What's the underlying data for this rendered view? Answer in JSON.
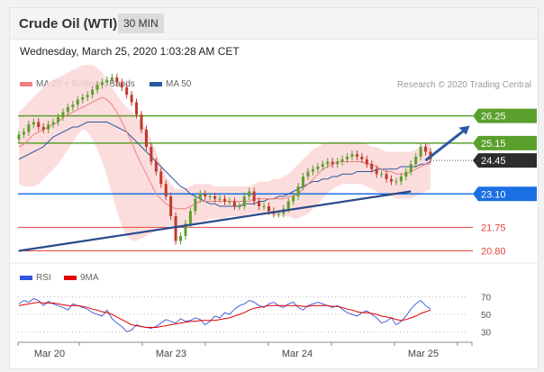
{
  "header": {
    "title": "Crude Oil (WTI)",
    "timeframe": "30 MIN"
  },
  "date_text": "Wednesday, March 25, 2020 1:03:28 AM CET",
  "legend": {
    "ma20": "MA 20 + Bollinger Bands",
    "ma50": "MA 50",
    "rsi": "RSI",
    "ma9": "9MA"
  },
  "credit": "Research © 2020 Trading Central",
  "colors": {
    "green": "#5aa02c",
    "blue": "#1a6fe3",
    "red": "#e2453c",
    "ma20": "#f08080",
    "ma50": "#2a5aa0",
    "band": "#fbd7d7",
    "arrow": "#2a5aa0"
  },
  "chart_data": [
    {
      "type": "line",
      "title": "",
      "x_tick_labels": [
        "Mar 20",
        "Mar 23",
        "Mar 24",
        "Mar 25"
      ],
      "ylim": [
        20.6,
        27.0
      ],
      "levels": [
        {
          "value": 26.25,
          "label": "26.25",
          "kind": "resistance"
        },
        {
          "value": 25.15,
          "label": "25.15",
          "kind": "resistance"
        },
        {
          "value": 24.45,
          "label": "24.45",
          "kind": "last-price"
        },
        {
          "value": 23.1,
          "label": "23.10",
          "kind": "pivot"
        },
        {
          "value": 21.75,
          "label": "21.75",
          "kind": "support"
        },
        {
          "value": 20.8,
          "label": "20.80",
          "kind": "support"
        }
      ],
      "close": [
        25.5,
        25.6,
        25.9,
        26.0,
        25.8,
        25.7,
        25.9,
        26.0,
        26.2,
        26.4,
        26.6,
        26.7,
        26.9,
        27.0,
        27.1,
        27.3,
        27.5,
        27.6,
        27.7,
        27.8,
        27.6,
        27.4,
        27.1,
        26.8,
        26.3,
        25.7,
        25.0,
        24.4,
        24.0,
        23.5,
        23.0,
        22.2,
        21.2,
        21.4,
        21.9,
        22.4,
        22.9,
        23.1,
        23.0,
        23.0,
        22.9,
        22.9,
        22.8,
        22.8,
        22.6,
        22.6,
        23.0,
        23.2,
        22.8,
        22.6,
        22.6,
        22.4,
        22.3,
        22.3,
        22.5,
        22.8,
        23.0,
        23.4,
        23.8,
        24.0,
        24.1,
        24.2,
        24.3,
        24.4,
        24.3,
        24.4,
        24.5,
        24.6,
        24.7,
        24.6,
        24.5,
        24.3,
        24.1,
        23.9,
        23.9,
        23.7,
        23.6,
        23.6,
        23.8,
        24.0,
        24.3,
        24.6,
        25.0,
        24.8,
        24.5
      ],
      "ma20": [
        25.0,
        25.1,
        25.3,
        25.5,
        25.6,
        25.7,
        25.8,
        25.9,
        26.0,
        26.2,
        26.3,
        26.4,
        26.5,
        26.6,
        26.7,
        26.8,
        26.9,
        27.0,
        26.9,
        26.7,
        26.4,
        26.0,
        25.6,
        25.2,
        24.7,
        24.3,
        23.9,
        23.5,
        23.1,
        22.9,
        22.7,
        22.6,
        22.5,
        22.5,
        22.5,
        22.6,
        22.7,
        22.8,
        22.8,
        22.8,
        22.8,
        22.8,
        22.8,
        22.8,
        22.8,
        22.8,
        22.8,
        22.8,
        22.9,
        22.9,
        22.9,
        22.9,
        22.9,
        22.9,
        22.9,
        23.0,
        23.0,
        23.1,
        23.3,
        23.5,
        23.7,
        23.9,
        24.1,
        24.2,
        24.3,
        24.4,
        24.4,
        24.4,
        24.4,
        24.4,
        24.4,
        24.3,
        24.3,
        24.2,
        24.1,
        24.0,
        24.0,
        23.9,
        23.9,
        23.9,
        24.0,
        24.1,
        24.2,
        24.3,
        24.3
      ],
      "ma50": [
        24.5,
        24.6,
        24.7,
        24.8,
        24.9,
        25.0,
        25.2,
        25.4,
        25.5,
        25.6,
        25.7,
        25.8,
        25.8,
        25.9,
        26.0,
        26.0,
        26.0,
        26.0,
        26.0,
        25.9,
        25.8,
        25.7,
        25.6,
        25.4,
        25.2,
        25.0,
        24.8,
        24.6,
        24.4,
        24.2,
        24.0,
        23.8,
        23.6,
        23.4,
        23.3,
        23.1,
        23.0,
        22.9,
        22.8,
        22.7,
        22.7,
        22.6,
        22.6,
        22.6,
        22.6,
        22.6,
        22.7,
        22.7,
        22.7,
        22.8,
        22.8,
        22.9,
        22.9,
        23.0,
        23.0,
        23.1,
        23.2,
        23.3,
        23.4,
        23.5,
        23.6,
        23.6,
        23.7,
        23.7,
        23.8,
        23.8,
        23.9,
        23.9,
        23.9,
        24.0,
        24.0,
        24.0,
        24.0,
        24.1,
        24.1,
        24.1,
        24.1,
        24.1,
        24.2,
        24.2,
        24.2,
        24.2,
        24.3,
        24.3,
        24.4
      ],
      "bb_upper": [
        26.4,
        26.6,
        26.8,
        27.0,
        27.2,
        27.4,
        27.6,
        27.7,
        27.8,
        27.9,
        28.0,
        28.1,
        28.2,
        28.3,
        28.3,
        28.3,
        28.2,
        28.0,
        27.7,
        27.4,
        27.1,
        26.8,
        26.6,
        26.4,
        26.2,
        26.0,
        25.7,
        25.3,
        24.8,
        24.3,
        23.8,
        23.5,
        23.3,
        23.3,
        23.3,
        23.4,
        23.5,
        23.5,
        23.5,
        23.5,
        23.4,
        23.4,
        23.4,
        23.4,
        23.4,
        23.4,
        23.4,
        23.4,
        23.5,
        23.6,
        23.6,
        23.6,
        23.7,
        23.7,
        23.8,
        23.9,
        24.1,
        24.3,
        24.5,
        24.7,
        24.9,
        25.0,
        25.1,
        25.2,
        25.2,
        25.2,
        25.2,
        25.2,
        25.2,
        25.2,
        25.2,
        25.1,
        25.0,
        25.0,
        24.9,
        24.8,
        24.8,
        24.8,
        24.8,
        24.8,
        24.8,
        24.9,
        25.0,
        25.1,
        25.2
      ],
      "bb_lower": [
        23.5,
        23.4,
        23.4,
        23.4,
        23.5,
        23.7,
        23.9,
        24.1,
        24.3,
        24.6,
        24.9,
        25.2,
        25.5,
        25.7,
        25.6,
        25.3,
        24.9,
        24.4,
        23.8,
        23.1,
        22.4,
        21.8,
        21.4,
        21.2,
        21.2,
        21.3,
        21.4,
        21.5,
        21.6,
        21.7,
        21.8,
        21.8,
        21.8,
        21.8,
        21.8,
        21.9,
        21.9,
        22.0,
        22.0,
        22.1,
        22.1,
        22.1,
        22.1,
        22.2,
        22.2,
        22.2,
        22.2,
        22.3,
        22.3,
        22.3,
        22.3,
        22.3,
        22.2,
        22.2,
        22.2,
        22.2,
        22.1,
        22.1,
        22.2,
        22.3,
        22.5,
        22.7,
        22.9,
        23.1,
        23.3,
        23.4,
        23.5,
        23.5,
        23.5,
        23.5,
        23.5,
        23.4,
        23.3,
        23.2,
        23.1,
        23.0,
        23.0,
        22.9,
        22.9,
        22.9,
        22.9,
        23.0,
        23.1,
        23.2,
        23.3
      ],
      "trendline": [
        [
          0,
          20.8
        ],
        [
          80,
          23.2
        ]
      ],
      "arrow": {
        "from": [
          83,
          24.45
        ],
        "to": [
          92,
          25.85
        ]
      }
    },
    {
      "type": "line",
      "title": "",
      "ylim": [
        20,
        80
      ],
      "y_ticks": [
        70,
        50,
        30
      ],
      "rsi": [
        62,
        66,
        64,
        68,
        66,
        60,
        65,
        62,
        60,
        58,
        55,
        62,
        60,
        58,
        56,
        52,
        50,
        48,
        55,
        45,
        40,
        36,
        30,
        32,
        38,
        36,
        35,
        34,
        36,
        40,
        44,
        42,
        40,
        45,
        42,
        43,
        46,
        44,
        38,
        42,
        48,
        46,
        52,
        50,
        56,
        60,
        62,
        66,
        64,
        60,
        58,
        62,
        64,
        60,
        58,
        62,
        64,
        58,
        55,
        60,
        62,
        64,
        62,
        60,
        58,
        60,
        56,
        52,
        50,
        48,
        52,
        54,
        50,
        46,
        40,
        42,
        46,
        38,
        42,
        48,
        56,
        62,
        66,
        60,
        56
      ],
      "ma9": [
        60,
        61,
        62,
        63,
        64,
        63,
        63,
        63,
        62,
        61,
        60,
        60,
        60,
        59,
        58,
        56,
        55,
        53,
        52,
        50,
        47,
        44,
        41,
        38,
        37,
        36,
        35,
        35,
        35,
        36,
        37,
        38,
        39,
        40,
        41,
        42,
        42,
        43,
        43,
        43,
        43,
        44,
        45,
        46,
        48,
        50,
        52,
        55,
        57,
        58,
        59,
        60,
        60,
        60,
        60,
        60,
        60,
        60,
        59,
        59,
        60,
        60,
        60,
        60,
        59,
        59,
        58,
        56,
        55,
        53,
        52,
        52,
        51,
        50,
        48,
        47,
        46,
        44,
        43,
        44,
        46,
        48,
        51,
        53,
        55
      ]
    }
  ]
}
